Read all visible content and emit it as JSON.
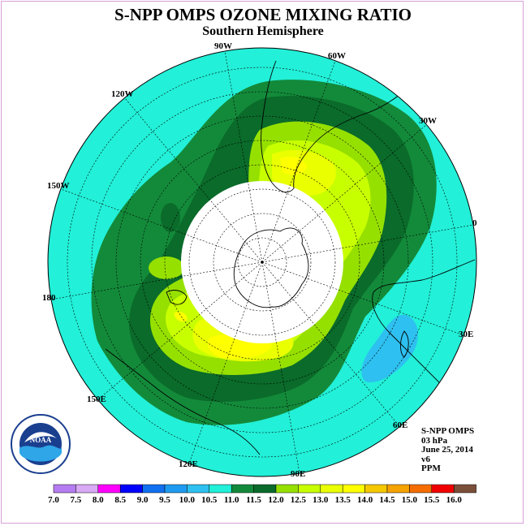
{
  "title": "S-NPP OMPS OZONE MIXING RATIO",
  "subtitle": "Southern Hemisphere",
  "longitude_labels": [
    "90W",
    "60W",
    "30W",
    "0",
    "30E",
    "60E",
    "90E",
    "120E",
    "150E",
    "180",
    "150W",
    "120W"
  ],
  "info": {
    "instrument": "S-NPP OMPS",
    "level": "03 hPa",
    "date": "June 25, 2014",
    "version": "v6",
    "units": "PPM"
  },
  "logo_text": "NOAA",
  "legend": {
    "ticks": [
      "7.0",
      "7.5",
      "8.0",
      "8.5",
      "9.0",
      "9.5",
      "10.0",
      "10.5",
      "11.0",
      "11.5",
      "12.0",
      "12.5",
      "13.0",
      "13.5",
      "14.0",
      "14.5",
      "15.0",
      "15.5",
      "16.0"
    ],
    "colors": [
      "#b57cf2",
      "#d8a9f5",
      "#ff00ff",
      "#0000ff",
      "#1170f0",
      "#1e9bf0",
      "#2ec0f0",
      "#22f0d8",
      "#138a3a",
      "#0a6b2a",
      "#96e000",
      "#c8ff00",
      "#eaff00",
      "#ffff00",
      "#f5c800",
      "#f5a300",
      "#f56d00",
      "#f00000",
      "#7a4f3a"
    ]
  },
  "colors": {
    "background_ozone": "#22f0d8",
    "polar_night": "#ffffff",
    "frame": "#d9a0d9"
  }
}
